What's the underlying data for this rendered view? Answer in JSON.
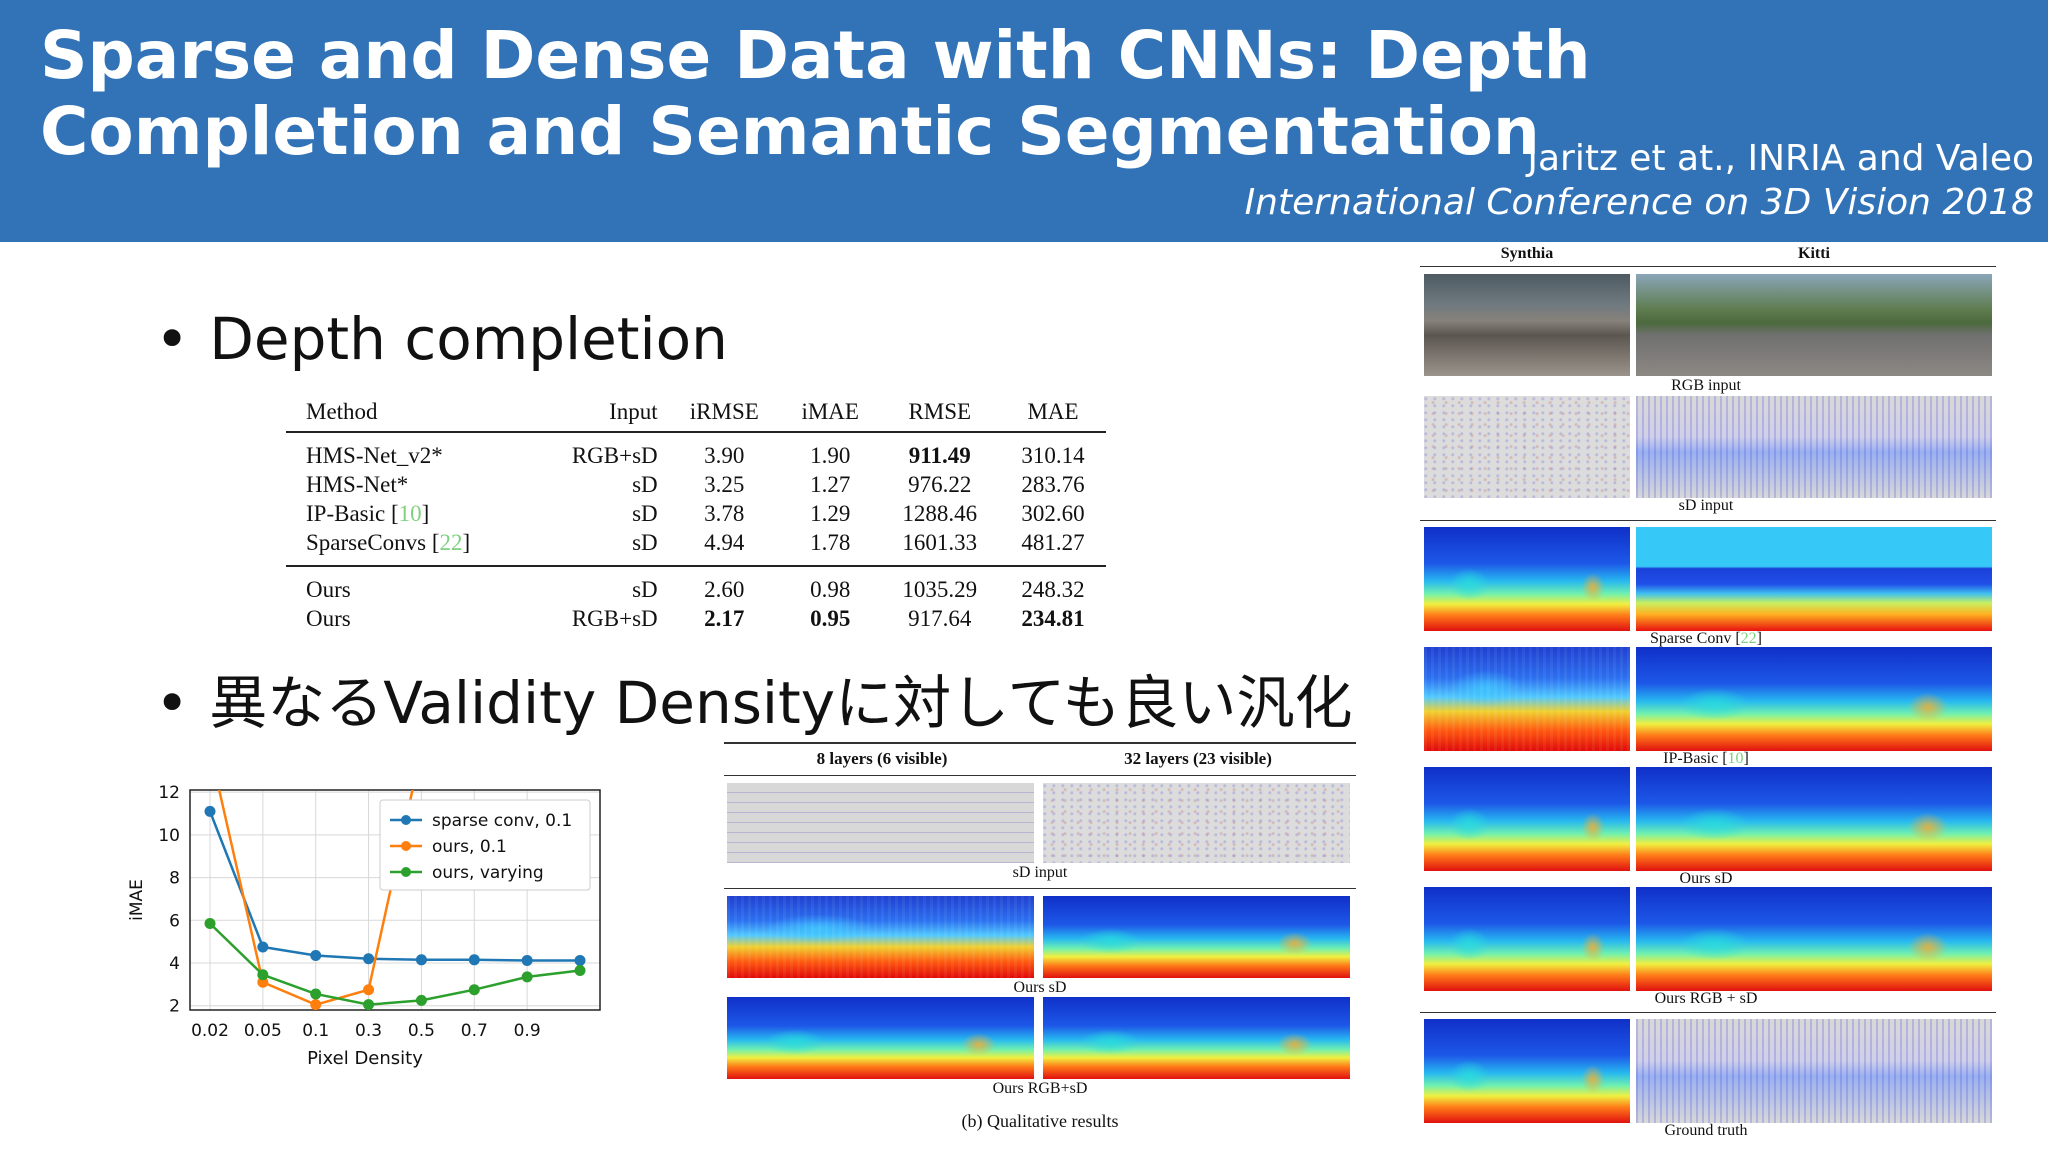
{
  "header": {
    "title": "Sparse and Dense Data with CNNs: Depth Completion and Semantic Segmentation",
    "authors": "Jaritz et at., INRIA and Valeo",
    "venue": "International Conference on 3D Vision 2018"
  },
  "bullets": {
    "b1": "Depth completion",
    "b2": "異なるValidity Densityに対しても良い汎化",
    "dot": "•"
  },
  "table": {
    "headers": [
      "Method",
      "Input",
      "iRMSE",
      "iMAE",
      "RMSE",
      "MAE"
    ],
    "rows": [
      {
        "method": "HMS-Net_v2*",
        "cite": "",
        "input": "RGB+sD",
        "irmse": "3.90",
        "imae": "1.90",
        "rmse": "911.49",
        "mae": "310.14"
      },
      {
        "method": "HMS-Net*",
        "cite": "",
        "input": "sD",
        "irmse": "3.25",
        "imae": "1.27",
        "rmse": "976.22",
        "mae": "283.76"
      },
      {
        "method": "IP-Basic [",
        "cite": "10",
        "close": "]",
        "input": "sD",
        "irmse": "3.78",
        "imae": "1.29",
        "rmse": "1288.46",
        "mae": "302.60"
      },
      {
        "method": "SparseConvs [",
        "cite": "22",
        "close": "]",
        "input": "sD",
        "irmse": "4.94",
        "imae": "1.78",
        "rmse": "1601.33",
        "mae": "481.27"
      }
    ],
    "ours": [
      {
        "method": "Ours",
        "input": "sD",
        "irmse": "2.60",
        "imae": "0.98",
        "rmse": "1035.29",
        "mae": "248.32"
      },
      {
        "method": "Ours",
        "input": "RGB+sD",
        "irmse": "2.17",
        "imae": "0.95",
        "rmse": "917.64",
        "mae": "234.81"
      }
    ]
  },
  "chart_data": {
    "type": "line",
    "ylabel": "iMAE",
    "xlabel": "Pixel Density",
    "x": [
      0.02,
      0.05,
      0.1,
      0.3,
      0.5,
      0.7,
      0.9,
      1.0
    ],
    "xticks": [
      "0.02",
      "0.05",
      "0.1",
      "0.3",
      "0.5",
      "0.7",
      "0.9"
    ],
    "yticks": [
      2,
      4,
      6,
      8,
      10,
      12
    ],
    "ylim": [
      1.8,
      12.1
    ],
    "grid": true,
    "legend_position": "top-right",
    "series": [
      {
        "name": "sparse conv, 0.1",
        "color": "#1f77b4",
        "values": [
          11.1,
          4.75,
          4.35,
          4.2,
          4.15,
          4.15,
          4.12,
          4.12
        ]
      },
      {
        "name": "ours, 0.1",
        "color": "#ff7f0e",
        "values": [
          14,
          3.1,
          2.05,
          2.75,
          14,
          null,
          null,
          null
        ]
      },
      {
        "name": "ours, varying",
        "color": "#2ca02c",
        "values": [
          5.85,
          3.45,
          2.55,
          2.05,
          2.25,
          2.75,
          3.35,
          3.65
        ]
      }
    ]
  },
  "figures": {
    "middle": {
      "col1": "8 layers (6 visible)",
      "col2": "32 layers (23 visible)",
      "row1": "sD input",
      "row2": "Ours sD",
      "row3": "Ours RGB+sD",
      "caption": "(b) Qualitative results"
    },
    "right": {
      "col1": "Synthia",
      "col2": "Kitti",
      "rgb": "RGB input",
      "sd": "sD input",
      "sparse_conv": "Sparse Conv [",
      "sparse_conv_cite": "22",
      "ip_basic": "IP-Basic [",
      "ip_basic_cite": "10",
      "ours_sd": "Ours sD",
      "ours_rgb": "Ours RGB + sD",
      "gt": "Ground truth"
    }
  }
}
